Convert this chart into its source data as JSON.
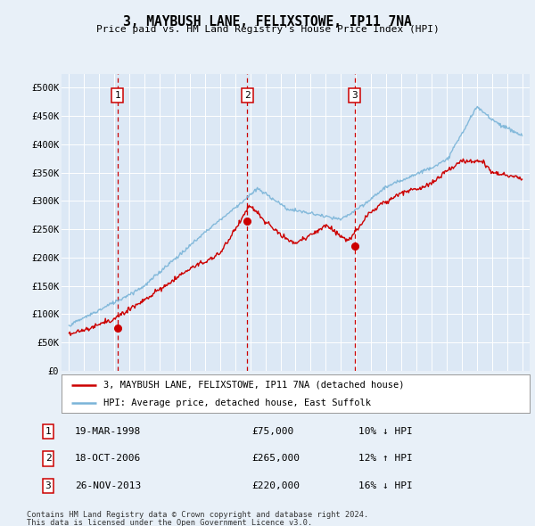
{
  "title": "3, MAYBUSH LANE, FELIXSTOWE, IP11 7NA",
  "subtitle": "Price paid vs. HM Land Registry's House Price Index (HPI)",
  "background_color": "#e8f0f8",
  "plot_bg_color": "#dce8f5",
  "grid_color": "#c8d8e8",
  "hpi_color": "#7ab4d8",
  "price_color": "#cc0000",
  "vline_color": "#cc0000",
  "sale_points": [
    {
      "date_num": 1998.21,
      "price": 75000,
      "label": "1"
    },
    {
      "date_num": 2006.8,
      "price": 265000,
      "label": "2"
    },
    {
      "date_num": 2013.9,
      "price": 220000,
      "label": "3"
    }
  ],
  "transactions": [
    {
      "num": "1",
      "date": "19-MAR-1998",
      "price": "£75,000",
      "rel": "10% ↓ HPI"
    },
    {
      "num": "2",
      "date": "18-OCT-2006",
      "price": "£265,000",
      "rel": "12% ↑ HPI"
    },
    {
      "num": "3",
      "date": "26-NOV-2013",
      "price": "£220,000",
      "rel": "16% ↓ HPI"
    }
  ],
  "legend_entries": [
    "3, MAYBUSH LANE, FELIXSTOWE, IP11 7NA (detached house)",
    "HPI: Average price, detached house, East Suffolk"
  ],
  "footer": "Contains HM Land Registry data © Crown copyright and database right 2024.\nThis data is licensed under the Open Government Licence v3.0.",
  "ylim": [
    0,
    525000
  ],
  "xlim": [
    1994.5,
    2025.5
  ],
  "yticks": [
    0,
    50000,
    100000,
    150000,
    200000,
    250000,
    300000,
    350000,
    400000,
    450000,
    500000
  ],
  "ytick_labels": [
    "£0",
    "£50K",
    "£100K",
    "£150K",
    "£200K",
    "£250K",
    "£300K",
    "£350K",
    "£400K",
    "£450K",
    "£500K"
  ],
  "xticks": [
    1995,
    1996,
    1997,
    1998,
    1999,
    2000,
    2001,
    2002,
    2003,
    2004,
    2005,
    2006,
    2007,
    2008,
    2009,
    2010,
    2011,
    2012,
    2013,
    2014,
    2015,
    2016,
    2017,
    2018,
    2019,
    2020,
    2021,
    2022,
    2023,
    2024,
    2025
  ]
}
